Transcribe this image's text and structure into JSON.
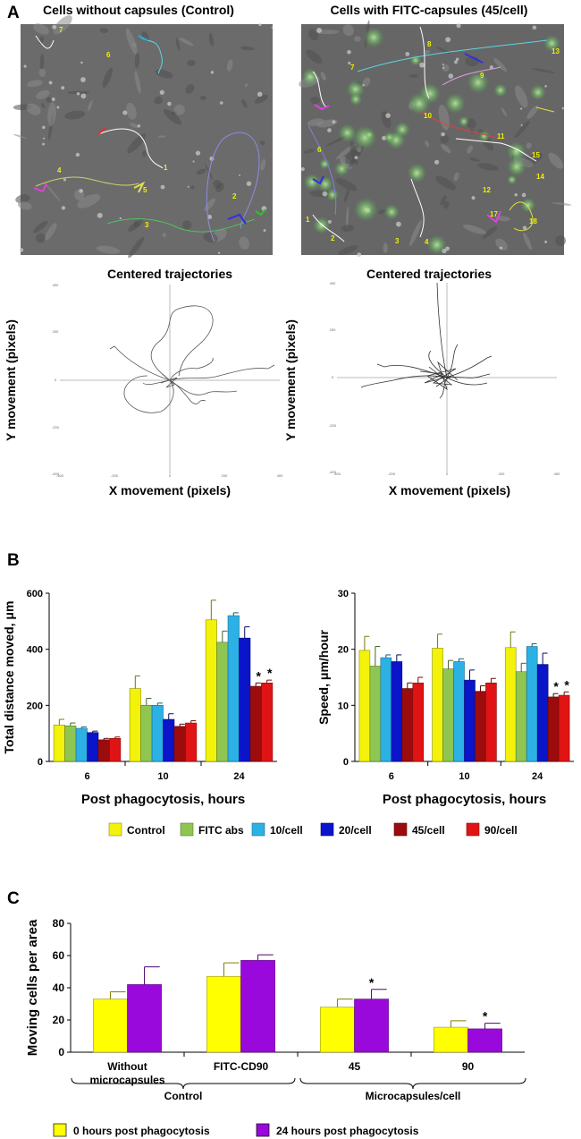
{
  "panel_labels": {
    "a": "A",
    "b": "B",
    "c": "C"
  },
  "panel_a": {
    "micrograph_titles": [
      "Cells without capsules (Control)",
      "Cells with FITC-capsules (45/cell)"
    ],
    "micrograph_left_track_labels": [
      "7",
      "6",
      "1",
      "4",
      "3",
      "2",
      "5"
    ],
    "micrograph_right_track_labels": [
      "13",
      "7",
      "8",
      "9",
      "6",
      "10",
      "11",
      "15",
      "14",
      "12",
      "17",
      "18",
      "1",
      "2",
      "3",
      "4"
    ],
    "trajectory_title": "Centered trajectories",
    "xlabel": "X movement (pixels)",
    "ylabel": "Y movement (pixels)",
    "tick_labels": {
      "x": [
        "-400",
        "-200",
        "0",
        "200",
        "400"
      ],
      "y": [
        "400",
        "200",
        "0",
        "-200",
        "-400"
      ]
    }
  },
  "colors": {
    "Control": "#f2f20a",
    "FITC abs": "#8fc651",
    "10/cell": "#2cb1e5",
    "20/cell": "#0a14c8",
    "45/cell": "#9c0c0c",
    "90/cell": "#e01414",
    "0h": "#ffff00",
    "24h": "#9a09db"
  },
  "chart_data": [
    {
      "type": "bar",
      "id": "distance",
      "title": "",
      "categories": [
        "6",
        "10",
        "24"
      ],
      "series": [
        {
          "name": "Control",
          "values": [
            130,
            260,
            505
          ],
          "errors": [
            20,
            45,
            70
          ]
        },
        {
          "name": "FITC abs",
          "values": [
            127,
            200,
            425
          ],
          "errors": [
            10,
            25,
            40
          ]
        },
        {
          "name": "10/cell",
          "values": [
            118,
            200,
            520
          ],
          "errors": [
            5,
            8,
            10
          ]
        },
        {
          "name": "20/cell",
          "values": [
            103,
            150,
            440
          ],
          "errors": [
            5,
            20,
            40
          ]
        },
        {
          "name": "45/cell",
          "values": [
            77,
            125,
            268
          ],
          "errors": [
            5,
            8,
            12
          ]
        },
        {
          "name": "90/cell",
          "values": [
            82,
            137,
            280
          ],
          "errors": [
            5,
            8,
            10
          ]
        }
      ],
      "significance": {
        "category": "24",
        "series": [
          "45/cell",
          "90/cell"
        ],
        "mark": "*"
      },
      "xlabel": "Post phagocytosis, hours",
      "ylabel": "Total distance moved, μm",
      "ylim": [
        0,
        600
      ],
      "yticks": [
        0,
        200,
        400,
        600
      ]
    },
    {
      "type": "bar",
      "id": "speed",
      "title": "",
      "categories": [
        "6",
        "10",
        "24"
      ],
      "series": [
        {
          "name": "Control",
          "values": [
            19.8,
            20.2,
            20.3
          ],
          "errors": [
            2.5,
            2.5,
            2.8
          ]
        },
        {
          "name": "FITC abs",
          "values": [
            17.0,
            16.5,
            16.0
          ],
          "errors": [
            3.5,
            1.5,
            1.5
          ]
        },
        {
          "name": "10/cell",
          "values": [
            18.5,
            17.8,
            20.5
          ],
          "errors": [
            0.5,
            0.5,
            0.5
          ]
        },
        {
          "name": "20/cell",
          "values": [
            17.8,
            14.5,
            17.3
          ],
          "errors": [
            1.2,
            1.8,
            2.0
          ]
        },
        {
          "name": "45/cell",
          "values": [
            13.0,
            12.5,
            11.5
          ],
          "errors": [
            1.0,
            1.0,
            0.6
          ]
        },
        {
          "name": "90/cell",
          "values": [
            14.0,
            14.0,
            11.8
          ],
          "errors": [
            1.0,
            0.8,
            0.6
          ]
        }
      ],
      "significance": {
        "category": "24",
        "series": [
          "45/cell",
          "90/cell"
        ],
        "mark": "*"
      },
      "xlabel": "Post phagocytosis, hours",
      "ylabel": "Speed, μm/hour",
      "ylim": [
        0,
        30
      ],
      "yticks": [
        0,
        10,
        20,
        30
      ]
    },
    {
      "type": "bar",
      "id": "moving_cells",
      "title": "",
      "categories": [
        "Without microcapsules",
        "FITC-CD90",
        "45",
        "90"
      ],
      "category_lines": [
        [
          "Without",
          "microcapsules"
        ],
        [
          "FITC-CD90"
        ],
        [
          "45"
        ],
        [
          "90"
        ]
      ],
      "series": [
        {
          "name": "0 hours post phagocytosis",
          "values": [
            33,
            47,
            28,
            15.5
          ],
          "errors": [
            4.5,
            8.5,
            5,
            4
          ]
        },
        {
          "name": "24 hours post phagocytosis",
          "values": [
            42,
            57,
            33,
            14.5
          ],
          "errors": [
            11,
            3.5,
            6,
            3.5
          ]
        }
      ],
      "significance": {
        "category_index": 2,
        "series_index": 1,
        "mark": "*",
        "also_category_index": 3
      },
      "groups": [
        "Control",
        "Microcapsules/cell"
      ],
      "xlabel": "",
      "ylabel": "Moving cells per area",
      "ylim": [
        0,
        80
      ],
      "yticks": [
        0,
        20,
        40,
        60,
        80
      ]
    }
  ]
}
